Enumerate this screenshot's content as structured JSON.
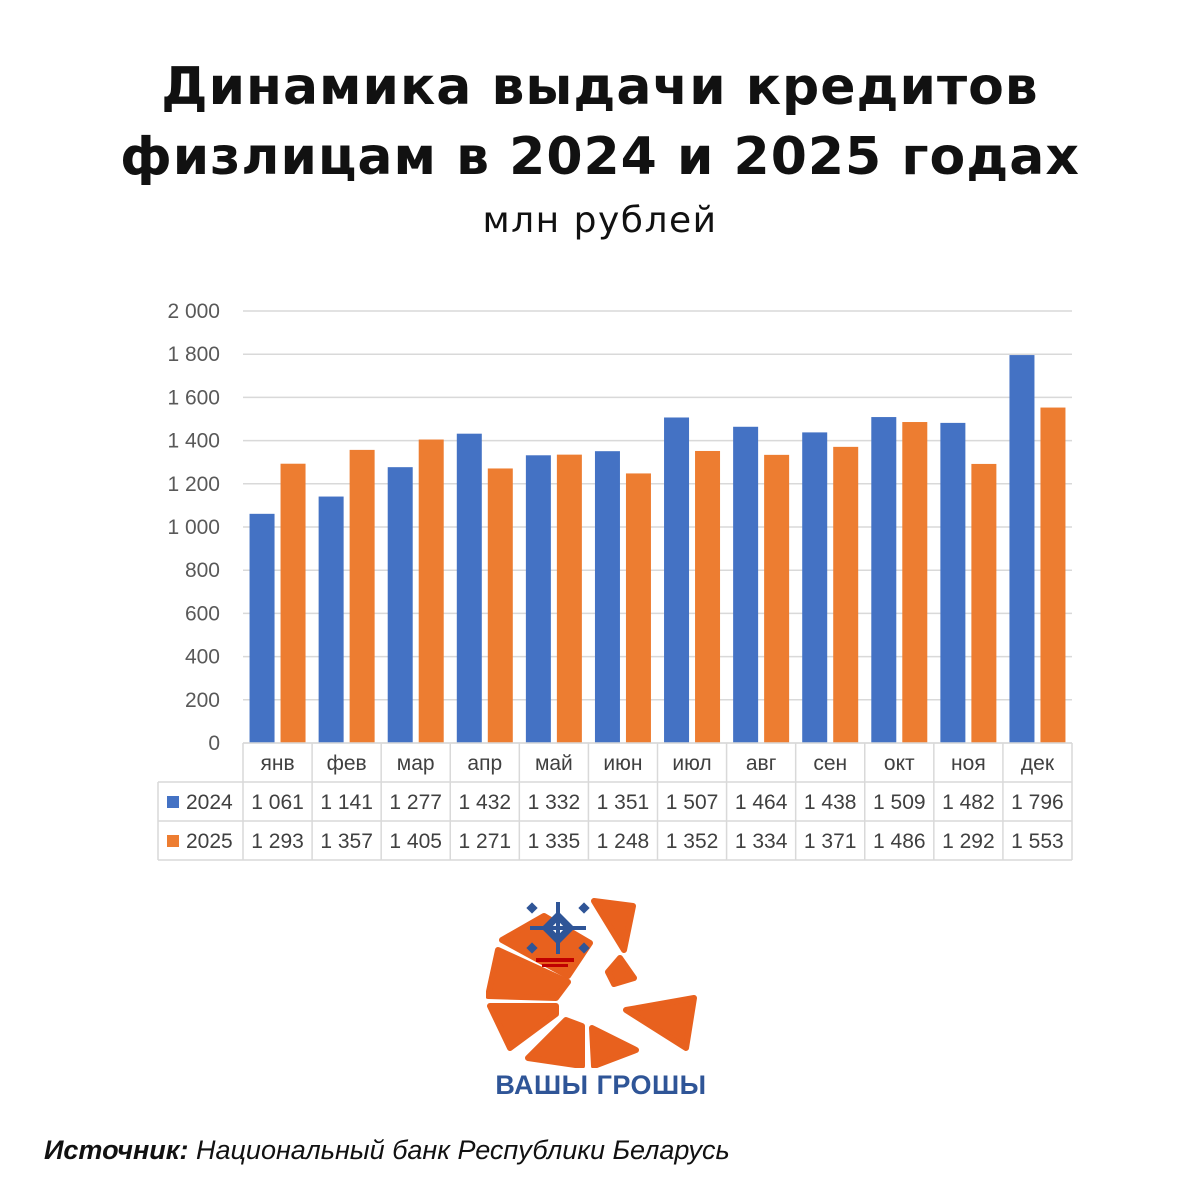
{
  "title": {
    "line1": "Динамика выдачи кредитов",
    "line2": "физлицам в 2024 и 2025 годах",
    "subtitle": "млн рублей"
  },
  "chart_data": {
    "type": "bar",
    "categories": [
      "янв",
      "фев",
      "мар",
      "апр",
      "май",
      "июн",
      "июл",
      "авг",
      "сен",
      "окт",
      "ноя",
      "дек"
    ],
    "series": [
      {
        "name": "2024",
        "color": "#4472c4",
        "values": [
          1061,
          1141,
          1277,
          1432,
          1332,
          1351,
          1507,
          1464,
          1438,
          1509,
          1482,
          1796
        ],
        "labels": [
          "1 061",
          "1 141",
          "1 277",
          "1 432",
          "1 332",
          "1 351",
          "1 507",
          "1 464",
          "1 438",
          "1 509",
          "1 482",
          "1 796"
        ]
      },
      {
        "name": "2025",
        "color": "#ed7d31",
        "values": [
          1293,
          1357,
          1405,
          1271,
          1335,
          1248,
          1352,
          1334,
          1371,
          1486,
          1292,
          1553
        ],
        "labels": [
          "1 293",
          "1 357",
          "1 405",
          "1 271",
          "1 335",
          "1 248",
          "1 352",
          "1 334",
          "1 371",
          "1 486",
          "1 292",
          "1 553"
        ]
      }
    ],
    "yticks": [
      "0",
      "200",
      "400",
      "600",
      "800",
      "1 000",
      "1 200",
      "1 400",
      "1 600",
      "1 800",
      "2 000"
    ],
    "ylim": [
      0,
      2000
    ],
    "grid": true,
    "legend": "data-table"
  },
  "logo": {
    "text": "ВАШЫ ГРОШЫ",
    "color": "#e8611e",
    "text_color": "#2f5597"
  },
  "source": {
    "label": "Источник:",
    "text": "Национальный банк Республики Беларусь"
  }
}
